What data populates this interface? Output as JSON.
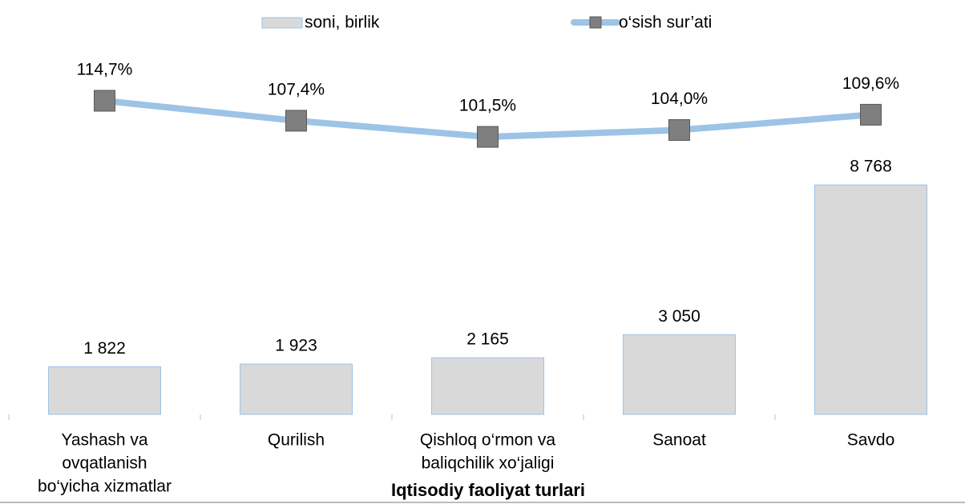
{
  "chart_data": {
    "type": "bar_line",
    "categories": [
      [
        "Yashash va",
        "ovqatlanish",
        "bo‘yicha xizmatlar"
      ],
      [
        "Qurilish"
      ],
      [
        "Qishloq o‘rmon va",
        "baliqchilik xo‘jaligi"
      ],
      [
        "Sanoat"
      ],
      [
        "Savdo"
      ]
    ],
    "x_label": "Iqtisodiy faoliyat turlari",
    "series": [
      {
        "name": "soni, birlik",
        "type": "bar",
        "color": "#d9d9d9",
        "values": [
          1822,
          1923,
          2165,
          3050,
          8768
        ],
        "value_labels": [
          "1 822",
          "1 923",
          "2 165",
          "3 050",
          "8 768"
        ]
      },
      {
        "name": "o‘sish sur’ati",
        "type": "line",
        "axis": "y2",
        "color": "#9dc3e6",
        "marker_color": "#7f7f7f",
        "values": [
          114.7,
          107.4,
          101.5,
          104.0,
          109.6
        ],
        "value_labels": [
          "114,7%",
          "107,4%",
          "101,5%",
          "104,0%",
          "109,6%"
        ]
      }
    ],
    "ylim": [
      0,
      14000
    ],
    "y2lim": [
      0,
      134
    ],
    "legend": "top"
  }
}
